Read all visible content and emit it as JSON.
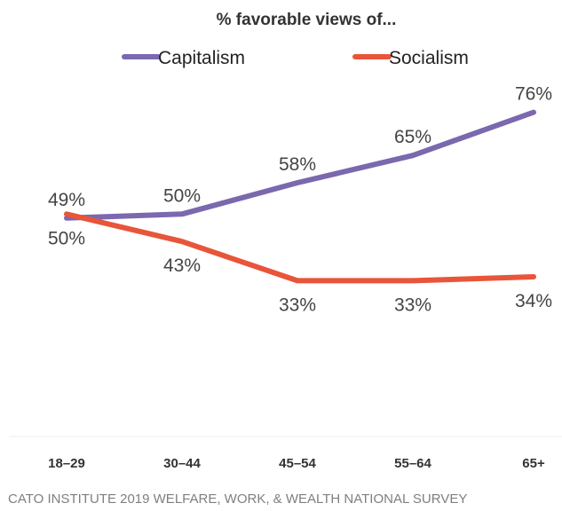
{
  "chart_data": {
    "type": "line",
    "title": "% favorable views of...",
    "categories": [
      "18–29",
      "30–44",
      "45–54",
      "55–64",
      "65+"
    ],
    "series": [
      {
        "name": "Capitalism",
        "values": [
          49,
          50,
          58,
          65,
          76
        ],
        "color": "#7b68ae",
        "labels": [
          "49%",
          "50%",
          "58%",
          "65%",
          "76%"
        ]
      },
      {
        "name": "Socialism",
        "values": [
          50,
          43,
          33,
          33,
          34
        ],
        "color": "#e8553a",
        "labels": [
          "50%",
          "43%",
          "33%",
          "33%",
          "34%"
        ]
      }
    ],
    "ylim": [
      0,
      100
    ],
    "grid": false,
    "legend_position": "top",
    "source": "CATO INSTITUTE 2019 WELFARE, WORK, & WEALTH NATIONAL SURVEY"
  }
}
